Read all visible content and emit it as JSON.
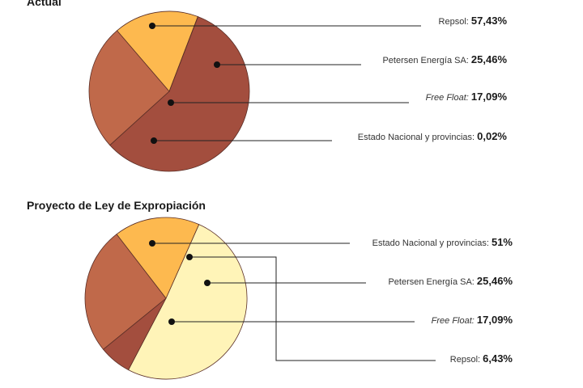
{
  "chart_data": [
    {
      "type": "pie",
      "title": "Actual",
      "slices": [
        {
          "label": "Repsol:",
          "value_label": "57,43%",
          "value": 57.43,
          "color": "#a34e3e"
        },
        {
          "label": "Petersen Energía SA:",
          "value_label": "25,46%",
          "value": 25.46,
          "color": "#c0694a"
        },
        {
          "label": "Free Float:",
          "value_label": "17,09%",
          "value": 17.09,
          "color": "#fdb94f",
          "italic": true
        },
        {
          "label": "Estado Nacional y provincias:",
          "value_label": "0,02%",
          "value": 0.02,
          "color": "#fff2b8"
        }
      ]
    },
    {
      "type": "pie",
      "title": "Proyecto de Ley de Expropiación",
      "slices": [
        {
          "label": "Estado Nacional y provincias:",
          "value_label": "51%",
          "value": 51,
          "color": "#fff4b8"
        },
        {
          "label": "Repsol:",
          "value_label": "6,43%",
          "value": 6.43,
          "color": "#a34e3e"
        },
        {
          "label": "Petersen Energía SA:",
          "value_label": "25,46%",
          "value": 25.46,
          "color": "#c0694a"
        },
        {
          "label": "Free Float:",
          "value_label": "17,09%",
          "value": 17.09,
          "color": "#fdb94f",
          "italic": true
        }
      ]
    }
  ]
}
